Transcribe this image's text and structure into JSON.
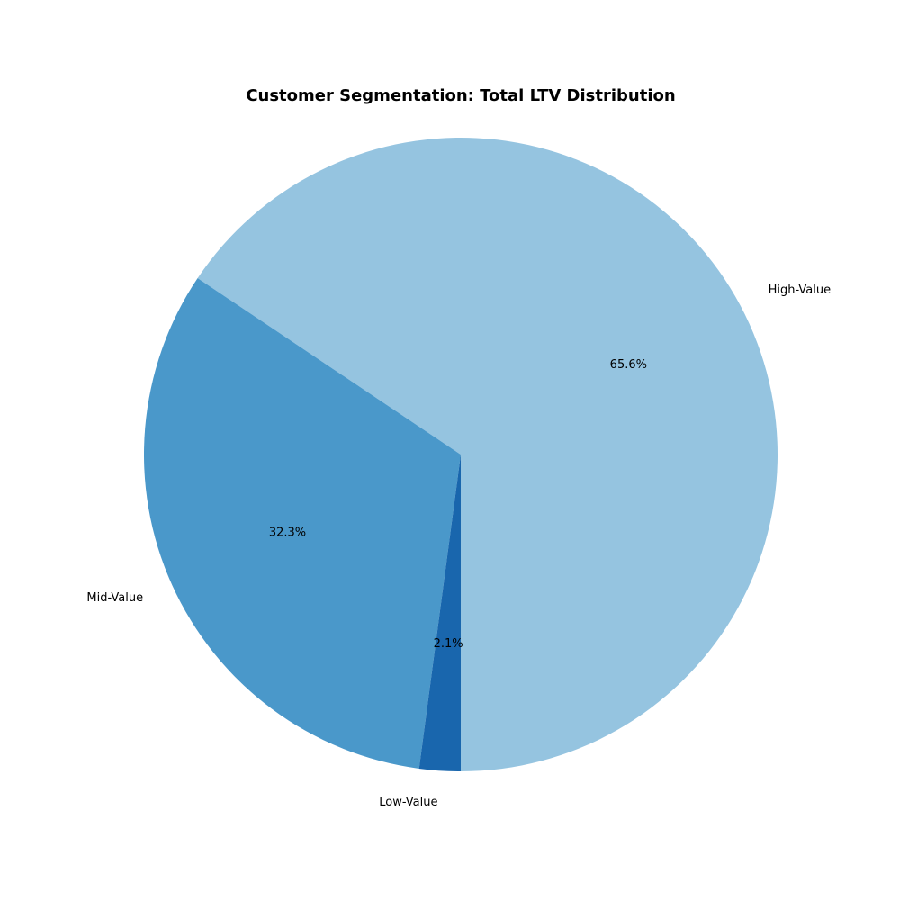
{
  "chart_data": {
    "type": "pie",
    "title": "Customer Segmentation: Total LTV Distribution",
    "categories": [
      "High-Value",
      "Mid-Value",
      "Low-Value"
    ],
    "values": [
      65.6,
      32.3,
      2.1
    ],
    "value_labels": [
      "65.6%",
      "32.3%",
      "2.1%"
    ],
    "colors": [
      "#95c4e0",
      "#4a98ca",
      "#1966ad"
    ],
    "start": "bottom",
    "direction": "counterclockwise",
    "legend": "none"
  }
}
